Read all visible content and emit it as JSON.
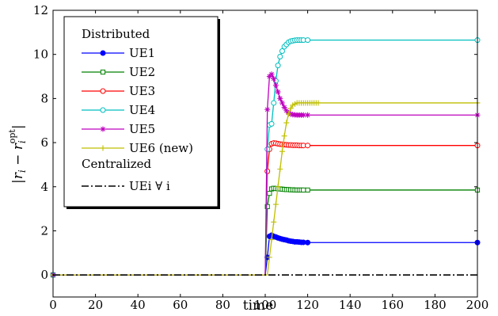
{
  "chart_data": {
    "type": "line",
    "xlabel": "time",
    "ylabel": "|r_i − r_i^opt|",
    "xlim": [
      0,
      200
    ],
    "ylim": [
      -1,
      12
    ],
    "xticks": [
      0,
      20,
      40,
      60,
      80,
      100,
      120,
      140,
      160,
      180,
      200
    ],
    "yticks": [
      0,
      2,
      4,
      6,
      8,
      10,
      12
    ],
    "grid": false,
    "legend_placement": "top-left",
    "legend_groups": {
      "distributed": "Distributed",
      "centralized": "Centralized"
    },
    "series": [
      {
        "name": "UE1",
        "group": "distributed",
        "color": "#0000ff",
        "marker": "circle-filled",
        "points": [
          [
            0,
            0
          ],
          [
            100,
            0
          ],
          [
            101,
            0.8
          ],
          [
            102,
            1.75
          ],
          [
            103,
            1.8
          ],
          [
            104,
            1.75
          ],
          [
            105,
            1.72
          ],
          [
            106,
            1.68
          ],
          [
            107,
            1.65
          ],
          [
            108,
            1.62
          ],
          [
            109,
            1.6
          ],
          [
            110,
            1.58
          ],
          [
            111,
            1.55
          ],
          [
            112,
            1.53
          ],
          [
            113,
            1.52
          ],
          [
            114,
            1.5
          ],
          [
            115,
            1.5
          ],
          [
            116,
            1.49
          ],
          [
            117,
            1.48
          ],
          [
            118,
            1.48
          ],
          [
            120,
            1.47
          ],
          [
            200,
            1.47
          ]
        ]
      },
      {
        "name": "UE2",
        "group": "distributed",
        "color": "#008000",
        "marker": "square-open",
        "points": [
          [
            0,
            0
          ],
          [
            100,
            0
          ],
          [
            101,
            3.1
          ],
          [
            102,
            3.7
          ],
          [
            103,
            3.9
          ],
          [
            104,
            3.93
          ],
          [
            105,
            3.92
          ],
          [
            106,
            3.91
          ],
          [
            107,
            3.9
          ],
          [
            108,
            3.89
          ],
          [
            109,
            3.88
          ],
          [
            110,
            3.87
          ],
          [
            111,
            3.87
          ],
          [
            112,
            3.86
          ],
          [
            113,
            3.86
          ],
          [
            114,
            3.85
          ],
          [
            115,
            3.85
          ],
          [
            116,
            3.85
          ],
          [
            117,
            3.85
          ],
          [
            118,
            3.85
          ],
          [
            120,
            3.85
          ],
          [
            200,
            3.85
          ]
        ]
      },
      {
        "name": "UE3",
        "group": "distributed",
        "color": "#ff0000",
        "marker": "circle-open",
        "points": [
          [
            0,
            0
          ],
          [
            100,
            0
          ],
          [
            101,
            4.7
          ],
          [
            102,
            5.7
          ],
          [
            103,
            5.95
          ],
          [
            104,
            5.98
          ],
          [
            105,
            5.97
          ],
          [
            106,
            5.95
          ],
          [
            107,
            5.93
          ],
          [
            108,
            5.92
          ],
          [
            109,
            5.91
          ],
          [
            110,
            5.9
          ],
          [
            111,
            5.89
          ],
          [
            112,
            5.89
          ],
          [
            113,
            5.88
          ],
          [
            114,
            5.88
          ],
          [
            115,
            5.88
          ],
          [
            116,
            5.87
          ],
          [
            117,
            5.87
          ],
          [
            118,
            5.87
          ],
          [
            120,
            5.87
          ],
          [
            200,
            5.87
          ]
        ]
      },
      {
        "name": "UE4",
        "group": "distributed",
        "color": "#00bfbf",
        "marker": "circle-open",
        "points": [
          [
            0,
            0
          ],
          [
            100,
            0
          ],
          [
            101,
            5.7
          ],
          [
            102,
            6.8
          ],
          [
            103,
            6.85
          ],
          [
            104,
            7.8
          ],
          [
            105,
            8.8
          ],
          [
            106,
            9.5
          ],
          [
            107,
            9.9
          ],
          [
            108,
            10.15
          ],
          [
            109,
            10.35
          ],
          [
            110,
            10.45
          ],
          [
            111,
            10.55
          ],
          [
            112,
            10.6
          ],
          [
            113,
            10.62
          ],
          [
            114,
            10.64
          ],
          [
            115,
            10.65
          ],
          [
            116,
            10.65
          ],
          [
            117,
            10.65
          ],
          [
            118,
            10.65
          ],
          [
            120,
            10.65
          ],
          [
            200,
            10.65
          ]
        ]
      },
      {
        "name": "UE5",
        "group": "distributed",
        "color": "#bf00bf",
        "marker": "star",
        "points": [
          [
            0,
            0
          ],
          [
            100,
            0
          ],
          [
            101,
            7.5
          ],
          [
            102,
            9.0
          ],
          [
            103,
            9.1
          ],
          [
            104,
            8.9
          ],
          [
            105,
            8.6
          ],
          [
            106,
            8.3
          ],
          [
            107,
            8.0
          ],
          [
            108,
            7.8
          ],
          [
            109,
            7.6
          ],
          [
            110,
            7.45
          ],
          [
            111,
            7.35
          ],
          [
            112,
            7.3
          ],
          [
            113,
            7.27
          ],
          [
            114,
            7.26
          ],
          [
            115,
            7.25
          ],
          [
            116,
            7.25
          ],
          [
            117,
            7.25
          ],
          [
            118,
            7.25
          ],
          [
            120,
            7.25
          ],
          [
            200,
            7.25
          ]
        ]
      },
      {
        "name": "UE6 (new)",
        "group": "distributed",
        "color": "#bfbf00",
        "marker": "plus",
        "points": [
          [
            0,
            0
          ],
          [
            100,
            0
          ],
          [
            101,
            0
          ],
          [
            102,
            0.8
          ],
          [
            103,
            1.6
          ],
          [
            104,
            2.4
          ],
          [
            105,
            3.2
          ],
          [
            106,
            4.0
          ],
          [
            107,
            4.8
          ],
          [
            108,
            5.6
          ],
          [
            109,
            6.3
          ],
          [
            110,
            6.9
          ],
          [
            111,
            7.3
          ],
          [
            112,
            7.55
          ],
          [
            113,
            7.7
          ],
          [
            114,
            7.75
          ],
          [
            115,
            7.8
          ],
          [
            116,
            7.8
          ],
          [
            117,
            7.8
          ],
          [
            118,
            7.8
          ],
          [
            119,
            7.8
          ],
          [
            120,
            7.8
          ],
          [
            121,
            7.8
          ],
          [
            122,
            7.8
          ],
          [
            123,
            7.8
          ],
          [
            124,
            7.8
          ],
          [
            125,
            7.8
          ],
          [
            200,
            7.8
          ]
        ]
      },
      {
        "name": "UEi ∀ i",
        "group": "centralized",
        "color": "#000000",
        "marker": "none",
        "dash": "dashdot",
        "points": [
          [
            0,
            0
          ],
          [
            200,
            0
          ]
        ]
      }
    ]
  }
}
